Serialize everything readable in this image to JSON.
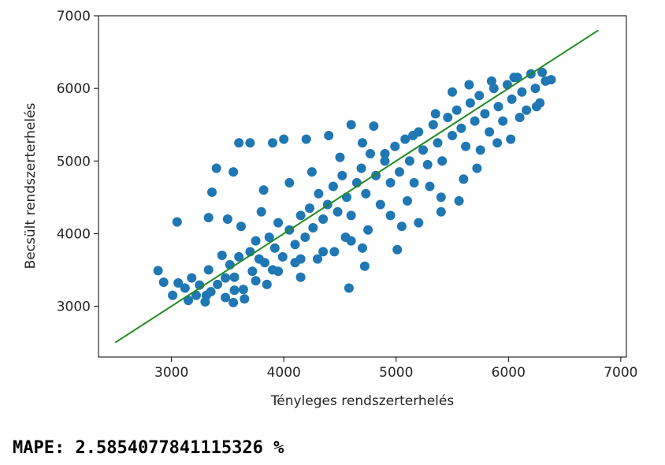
{
  "chart_data": {
    "type": "scatter",
    "title": "",
    "xlabel": "Tényleges rendszerterhelés",
    "ylabel": "Becsült rendszerterhelés",
    "xlim": [
      2350,
      7050
    ],
    "ylim": [
      2300,
      7000
    ],
    "x_ticks": [
      3000,
      4000,
      5000,
      6000,
      7000
    ],
    "y_ticks": [
      3000,
      4000,
      5000,
      6000,
      7000
    ],
    "grid": false,
    "scatter_color": "#1f77b4",
    "reference_line": {
      "color": "#228b22",
      "x": [
        2500,
        6800
      ],
      "y": [
        2500,
        6800
      ]
    },
    "series": [
      {
        "points": [
          [
            2880,
            3490
          ],
          [
            2930,
            3330
          ],
          [
            3010,
            3150
          ],
          [
            3060,
            3320
          ],
          [
            3120,
            3250
          ],
          [
            3180,
            3390
          ],
          [
            3250,
            3290
          ],
          [
            3310,
            3150
          ],
          [
            3330,
            3500
          ],
          [
            3410,
            3300
          ],
          [
            3450,
            3700
          ],
          [
            3480,
            3390
          ],
          [
            3520,
            3570
          ],
          [
            3560,
            3400
          ],
          [
            3600,
            3680
          ],
          [
            3640,
            3230
          ],
          [
            3700,
            3750
          ],
          [
            3720,
            3480
          ],
          [
            3750,
            3900
          ],
          [
            3780,
            3650
          ],
          [
            3830,
            3600
          ],
          [
            3870,
            3950
          ],
          [
            3920,
            3800
          ],
          [
            3950,
            4150
          ],
          [
            3990,
            3680
          ],
          [
            4050,
            4050
          ],
          [
            4100,
            3850
          ],
          [
            4150,
            4250
          ],
          [
            4190,
            3950
          ],
          [
            4230,
            4350
          ],
          [
            4260,
            4080
          ],
          [
            4310,
            4550
          ],
          [
            4350,
            4200
          ],
          [
            4390,
            4400
          ],
          [
            4440,
            4650
          ],
          [
            4480,
            4300
          ],
          [
            4520,
            4800
          ],
          [
            4560,
            4500
          ],
          [
            4600,
            4250
          ],
          [
            4650,
            4700
          ],
          [
            4690,
            4900
          ],
          [
            4730,
            4550
          ],
          [
            4770,
            5100
          ],
          [
            4820,
            4800
          ],
          [
            4860,
            4400
          ],
          [
            4900,
            5000
          ],
          [
            4950,
            4700
          ],
          [
            4990,
            5200
          ],
          [
            5030,
            4850
          ],
          [
            5080,
            5300
          ],
          [
            5120,
            5000
          ],
          [
            5160,
            4700
          ],
          [
            5200,
            5400
          ],
          [
            5240,
            5150
          ],
          [
            5280,
            4950
          ],
          [
            5330,
            5500
          ],
          [
            5370,
            5250
          ],
          [
            5410,
            5000
          ],
          [
            5460,
            5600
          ],
          [
            5500,
            5350
          ],
          [
            5540,
            5700
          ],
          [
            5580,
            5450
          ],
          [
            5620,
            5200
          ],
          [
            5660,
            5800
          ],
          [
            5700,
            5550
          ],
          [
            5740,
            5900
          ],
          [
            5790,
            5650
          ],
          [
            5830,
            5400
          ],
          [
            5870,
            6000
          ],
          [
            5910,
            5750
          ],
          [
            5950,
            5550
          ],
          [
            5990,
            6050
          ],
          [
            6030,
            5850
          ],
          [
            6080,
            6150
          ],
          [
            6120,
            5950
          ],
          [
            6160,
            5700
          ],
          [
            6200,
            6200
          ],
          [
            6240,
            6000
          ],
          [
            6280,
            5800
          ],
          [
            6330,
            6100
          ],
          [
            6380,
            6120
          ],
          [
            3400,
            4900
          ],
          [
            3360,
            4570
          ],
          [
            3600,
            5250
          ],
          [
            3700,
            5250
          ],
          [
            3900,
            5250
          ],
          [
            3330,
            4220
          ],
          [
            3050,
            4160
          ],
          [
            3550,
            4850
          ],
          [
            3800,
            4300
          ],
          [
            4000,
            5300
          ],
          [
            4200,
            5300
          ],
          [
            4400,
            5350
          ],
          [
            4600,
            5500
          ],
          [
            4800,
            5480
          ],
          [
            4300,
            3650
          ],
          [
            4450,
            3750
          ],
          [
            4700,
            3800
          ],
          [
            4580,
            3250
          ],
          [
            4720,
            3550
          ],
          [
            5010,
            3780
          ],
          [
            5050,
            4100
          ],
          [
            5200,
            4150
          ],
          [
            5400,
            4500
          ],
          [
            5560,
            4450
          ],
          [
            5600,
            4750
          ],
          [
            5720,
            4900
          ],
          [
            6020,
            5300
          ],
          [
            5400,
            4300
          ],
          [
            4600,
            3900
          ],
          [
            4150,
            3400
          ],
          [
            3850,
            3300
          ],
          [
            3650,
            3100
          ],
          [
            3480,
            3120
          ],
          [
            3300,
            3060
          ],
          [
            3150,
            3080
          ],
          [
            3350,
            3200
          ],
          [
            3550,
            3050
          ],
          [
            3900,
            3500
          ],
          [
            4100,
            3600
          ],
          [
            3620,
            4100
          ],
          [
            3820,
            4600
          ],
          [
            3500,
            4200
          ],
          [
            4050,
            4700
          ],
          [
            4250,
            4850
          ],
          [
            4500,
            5050
          ],
          [
            4700,
            5250
          ],
          [
            4900,
            5100
          ],
          [
            5150,
            5350
          ],
          [
            5350,
            5650
          ],
          [
            5500,
            5950
          ],
          [
            5650,
            6050
          ],
          [
            5850,
            6100
          ],
          [
            6050,
            6150
          ],
          [
            6300,
            6220
          ],
          [
            5750,
            5150
          ],
          [
            5900,
            5250
          ],
          [
            6100,
            5600
          ],
          [
            6250,
            5750
          ],
          [
            5300,
            4650
          ],
          [
            5100,
            4450
          ],
          [
            4950,
            4250
          ],
          [
            4750,
            4050
          ],
          [
            4550,
            3950
          ],
          [
            4350,
            3750
          ],
          [
            4150,
            3650
          ],
          [
            3950,
            3480
          ],
          [
            3750,
            3350
          ],
          [
            3560,
            3220
          ],
          [
            3220,
            3150
          ]
        ]
      }
    ]
  },
  "output": {
    "text": "MAPE: 2.5854077841115326 %"
  }
}
